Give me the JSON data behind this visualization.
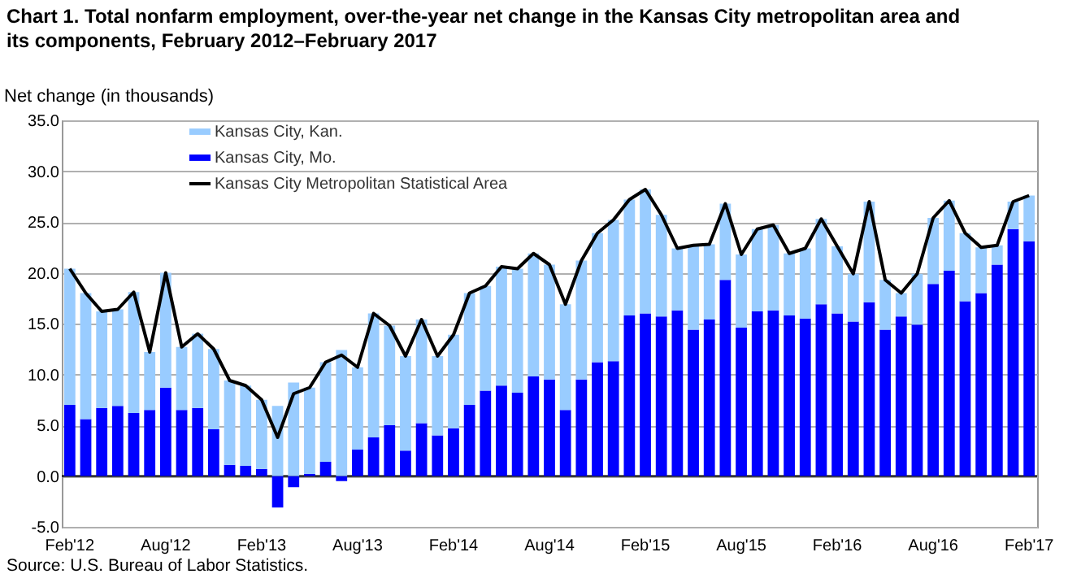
{
  "chart_data": {
    "type": "bar",
    "title": "Chart 1. Total nonfarm employment, over-the-year net change in the Kansas  City metropolitan area and its components, February 2012–February 2017",
    "ylabel": "Net change (in thousands)",
    "annotations": [
      "Source: U.S. Bureau of Labor Statistics."
    ],
    "categories": [
      "Feb'12",
      null,
      null,
      null,
      null,
      null,
      "Aug'12",
      null,
      null,
      null,
      null,
      null,
      "Feb'13",
      null,
      null,
      null,
      null,
      null,
      "Aug'13",
      null,
      null,
      null,
      null,
      null,
      "Feb'14",
      null,
      null,
      null,
      null,
      null,
      "Aug'14",
      null,
      null,
      null,
      null,
      null,
      "Feb'15",
      null,
      null,
      null,
      null,
      null,
      "Aug'15",
      null,
      null,
      null,
      null,
      null,
      "Feb'16",
      null,
      null,
      null,
      null,
      null,
      "Aug'16",
      null,
      null,
      null,
      null,
      null,
      "Feb'17"
    ],
    "stacked": true,
    "series": [
      {
        "name": "Kansas City, Mo.",
        "color": "#0000ff",
        "values": [
          7.0,
          5.6,
          6.7,
          6.9,
          6.2,
          6.5,
          8.7,
          6.5,
          6.7,
          4.6,
          1.1,
          1.0,
          0.7,
          -3.1,
          -1.1,
          0.2,
          1.4,
          -0.5,
          2.6,
          3.8,
          5.0,
          2.5,
          5.2,
          4.0,
          4.7,
          7.0,
          8.4,
          8.9,
          8.2,
          9.8,
          9.5,
          6.5,
          9.5,
          11.2,
          11.3,
          15.8,
          16.0,
          15.7,
          16.3,
          14.4,
          15.4,
          19.3,
          14.6,
          16.2,
          16.3,
          15.8,
          15.5,
          16.9,
          16.0,
          15.2,
          17.1,
          14.4,
          15.7,
          14.9,
          18.9,
          20.2,
          17.2,
          18.0,
          20.8,
          24.3,
          23.1
        ]
      },
      {
        "name": "Kansas City, Kan.",
        "color": "#99ccff",
        "values": [
          13.4,
          12.4,
          9.5,
          9.5,
          11.9,
          5.7,
          11.3,
          6.2,
          7.3,
          7.9,
          8.3,
          7.9,
          6.8,
          6.9,
          9.2,
          8.5,
          9.8,
          12.4,
          8.1,
          12.2,
          9.8,
          9.3,
          10.2,
          7.8,
          9.2,
          11.0,
          10.3,
          11.7,
          12.2,
          12.1,
          11.3,
          10.4,
          11.7,
          12.7,
          13.9,
          11.4,
          12.2,
          10.0,
          6.1,
          8.3,
          7.4,
          7.5,
          7.2,
          8.1,
          8.4,
          6.1,
          6.9,
          8.4,
          6.6,
          4.7,
          9.9,
          4.9,
          2.3,
          5.0,
          6.5,
          6.9,
          6.7,
          4.5,
          1.9,
          2.7,
          4.5
        ]
      },
      {
        "name": "Kansas City Metropolitan Statistical Area",
        "type": "line",
        "color": "#000000",
        "values": [
          20.4,
          18.0,
          16.2,
          16.4,
          18.1,
          12.2,
          20.0,
          12.7,
          14.0,
          12.5,
          9.4,
          8.9,
          7.5,
          3.8,
          8.1,
          8.7,
          11.2,
          11.9,
          10.7,
          16.0,
          14.8,
          11.8,
          15.4,
          11.8,
          13.9,
          18.0,
          18.7,
          20.6,
          20.4,
          21.9,
          20.8,
          16.9,
          21.2,
          23.9,
          25.2,
          27.2,
          28.2,
          25.7,
          22.4,
          22.7,
          22.8,
          26.8,
          21.8,
          24.3,
          24.7,
          21.9,
          22.4,
          25.3,
          22.6,
          19.9,
          27.0,
          19.3,
          18.0,
          19.9,
          25.4,
          27.1,
          23.9,
          22.5,
          22.7,
          27.0,
          27.6
        ]
      }
    ],
    "ylim": [
      -5,
      35
    ],
    "yticks": [
      {
        "value": -5,
        "label": "-5.0"
      },
      {
        "value": 0,
        "label": "0.0"
      },
      {
        "value": 5,
        "label": "5.0"
      },
      {
        "value": 10,
        "label": "10.0"
      },
      {
        "value": 15,
        "label": "15.0"
      },
      {
        "value": 20,
        "label": "20.0"
      },
      {
        "value": 25,
        "label": "25.0"
      },
      {
        "value": 30,
        "label": "30.0"
      },
      {
        "value": 35,
        "label": "35.0"
      }
    ],
    "ref_lines": [
      {
        "axis": "y",
        "value": 0,
        "color": "#000000"
      }
    ],
    "grid": "y",
    "legend": "top left"
  }
}
